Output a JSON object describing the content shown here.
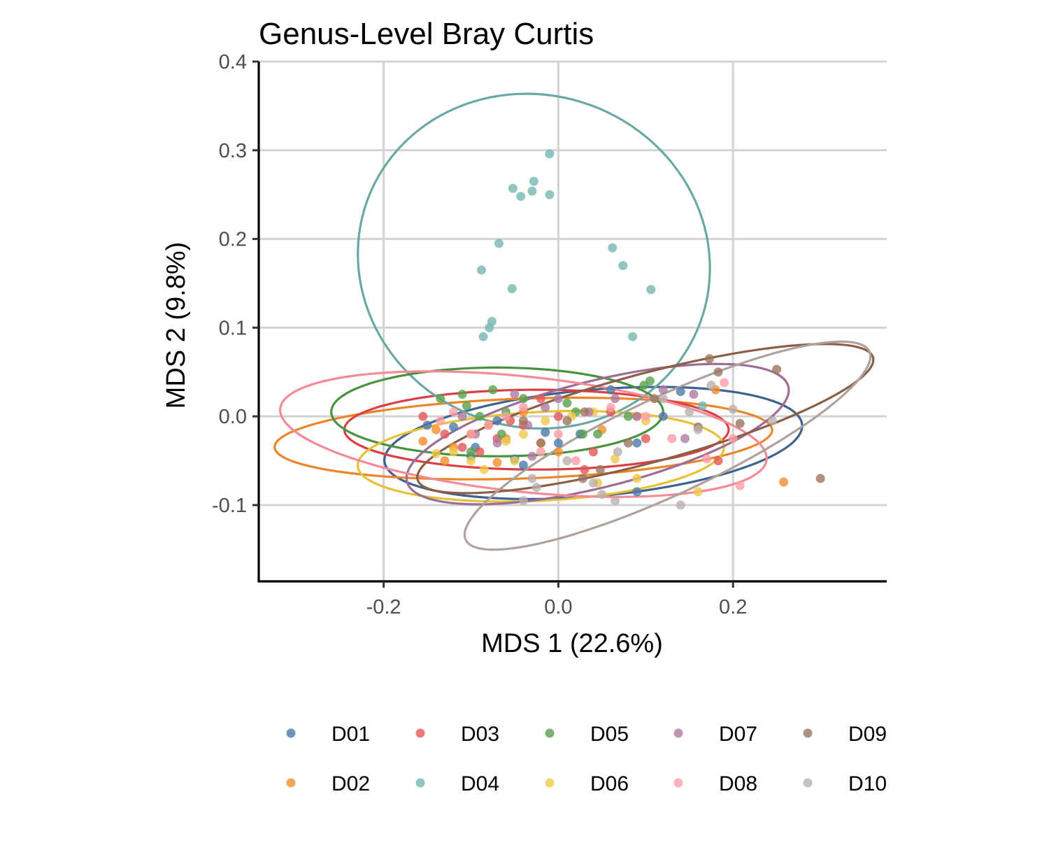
{
  "chart_data": {
    "type": "scatter",
    "title": "Genus-Level Bray Curtis",
    "xlabel": "MDS 1 (22.6%)",
    "ylabel": "MDS 2 (9.8%)",
    "xlim": [
      -0.343,
      0.376
    ],
    "ylim": [
      -0.186,
      0.4
    ],
    "x_ticks": [
      -0.2,
      0.0,
      0.2
    ],
    "x_tick_labels": [
      "-0.2",
      "0.0",
      "0.2"
    ],
    "y_ticks": [
      -0.1,
      0.0,
      0.1,
      0.2,
      0.3,
      0.4
    ],
    "y_tick_labels": [
      "-0.1",
      "0.0",
      "0.1",
      "0.2",
      "0.3",
      "0.4"
    ],
    "grid": true,
    "legend_position": "bottom",
    "series": [
      {
        "name": "D01",
        "color": "#4E79A7",
        "points": [
          [
            -0.15,
            -0.01
          ],
          [
            -0.12,
            -0.012
          ],
          [
            -0.095,
            -0.035
          ],
          [
            -0.07,
            -0.005
          ],
          [
            -0.04,
            -0.055
          ],
          [
            -0.015,
            -0.018
          ],
          [
            0.0,
            -0.03
          ],
          [
            0.025,
            -0.02
          ],
          [
            0.06,
            0.03
          ],
          [
            0.09,
            -0.03
          ],
          [
            0.14,
            0.028
          ],
          [
            -0.05,
            -0.048
          ],
          [
            0.09,
            -0.085
          ],
          [
            0.12,
            0.0
          ],
          [
            -0.1,
            -0.045
          ]
        ],
        "ellipse": {
          "cx": 0.04,
          "cy": -0.03,
          "rx": 0.24,
          "ry": 0.06,
          "angle": 5
        }
      },
      {
        "name": "D02",
        "color": "#F28E2B",
        "points": [
          [
            -0.155,
            -0.028
          ],
          [
            -0.14,
            -0.015
          ],
          [
            -0.13,
            -0.05
          ],
          [
            -0.12,
            -0.035
          ],
          [
            -0.1,
            -0.02
          ],
          [
            -0.08,
            -0.01
          ],
          [
            -0.06,
            -0.025
          ],
          [
            -0.04,
            0.005
          ],
          [
            -0.02,
            -0.03
          ],
          [
            0.0,
            -0.04
          ],
          [
            0.05,
            -0.015
          ],
          [
            0.09,
            0.0
          ],
          [
            0.18,
            0.03
          ],
          [
            0.258,
            -0.074
          ],
          [
            -0.07,
            -0.052
          ]
        ],
        "ellipse": {
          "cx": -0.04,
          "cy": -0.025,
          "rx": 0.285,
          "ry": 0.045,
          "angle": 2
        }
      },
      {
        "name": "D03",
        "color": "#E15759",
        "points": [
          [
            -0.155,
            0.0
          ],
          [
            -0.13,
            -0.02
          ],
          [
            -0.11,
            -0.035
          ],
          [
            -0.09,
            -0.04
          ],
          [
            -0.07,
            -0.025
          ],
          [
            -0.055,
            -0.005
          ],
          [
            -0.04,
            -0.01
          ],
          [
            -0.02,
            0.02
          ],
          [
            0.0,
            0.0
          ],
          [
            0.03,
            -0.06
          ],
          [
            0.06,
            0.005
          ],
          [
            0.1,
            -0.025
          ],
          [
            0.183,
            -0.05
          ],
          [
            0.04,
            -0.04
          ]
        ],
        "ellipse": {
          "cx": -0.025,
          "cy": -0.015,
          "rx": 0.22,
          "ry": 0.045,
          "angle": 0
        }
      },
      {
        "name": "D04",
        "color": "#76B7B2",
        "points": [
          [
            -0.052,
            0.257
          ],
          [
            -0.028,
            0.265
          ],
          [
            -0.01,
            0.296
          ],
          [
            -0.03,
            0.254
          ],
          [
            -0.043,
            0.248
          ],
          [
            -0.01,
            0.25
          ],
          [
            -0.068,
            0.195
          ],
          [
            -0.088,
            0.165
          ],
          [
            -0.053,
            0.144
          ],
          [
            -0.076,
            0.107
          ],
          [
            -0.079,
            0.1
          ],
          [
            -0.086,
            0.09
          ],
          [
            0.062,
            0.19
          ],
          [
            0.074,
            0.17
          ],
          [
            0.106,
            0.143
          ],
          [
            0.085,
            0.09
          ],
          [
            0.165,
            0.012
          ]
        ],
        "ellipse": {
          "cx": -0.028,
          "cy": 0.175,
          "rx": 0.19,
          "ry": 0.2,
          "angle": 70
        }
      },
      {
        "name": "D05",
        "color": "#59A14F",
        "points": [
          [
            -0.135,
            0.02
          ],
          [
            -0.11,
            0.025
          ],
          [
            -0.105,
            0.012
          ],
          [
            -0.09,
            0.0
          ],
          [
            -0.075,
            0.03
          ],
          [
            -0.06,
            0.005
          ],
          [
            -0.04,
            0.02
          ],
          [
            0.01,
            0.015
          ],
          [
            0.02,
            0.005
          ],
          [
            0.028,
            -0.02
          ],
          [
            0.08,
            0.0
          ],
          [
            0.098,
            0.035
          ],
          [
            0.105,
            0.04
          ],
          [
            -0.065,
            -0.02
          ],
          [
            -0.1,
            -0.04
          ],
          [
            0.045,
            -0.02
          ]
        ],
        "ellipse": {
          "cx": -0.07,
          "cy": 0.005,
          "rx": 0.19,
          "ry": 0.05,
          "angle": 0
        }
      },
      {
        "name": "D06",
        "color": "#EDC948",
        "points": [
          [
            -0.14,
            -0.042
          ],
          [
            -0.12,
            -0.04
          ],
          [
            -0.1,
            -0.05
          ],
          [
            -0.085,
            -0.06
          ],
          [
            -0.06,
            -0.028
          ],
          [
            -0.05,
            -0.05
          ],
          [
            -0.04,
            -0.02
          ],
          [
            -0.015,
            -0.005
          ],
          [
            0.015,
            0.0
          ],
          [
            0.04,
            0.005
          ],
          [
            0.065,
            -0.048
          ],
          [
            0.09,
            -0.07
          ],
          [
            0.1,
            -0.005
          ],
          [
            0.16,
            -0.085
          ],
          [
            0.045,
            -0.075
          ]
        ],
        "ellipse": {
          "cx": -0.02,
          "cy": -0.045,
          "rx": 0.21,
          "ry": 0.05,
          "angle": 3
        }
      },
      {
        "name": "D07",
        "color": "#B07AA1",
        "points": [
          [
            -0.11,
            0.0
          ],
          [
            -0.095,
            -0.02
          ],
          [
            -0.07,
            -0.03
          ],
          [
            -0.05,
            0.025
          ],
          [
            -0.035,
            -0.01
          ],
          [
            -0.015,
            0.01
          ],
          [
            0.0,
            0.02
          ],
          [
            0.035,
            0.005
          ],
          [
            0.065,
            0.02
          ],
          [
            0.09,
            0.0
          ],
          [
            0.12,
            0.03
          ],
          [
            0.155,
            0.025
          ],
          [
            0.145,
            -0.025
          ],
          [
            -0.03,
            -0.045
          ]
        ],
        "ellipse": {
          "cx": 0.045,
          "cy": -0.02,
          "rx": 0.225,
          "ry": 0.06,
          "angle": 14
        }
      },
      {
        "name": "D08",
        "color": "#FF9DA7",
        "points": [
          [
            -0.135,
            -0.005
          ],
          [
            -0.12,
            0.005
          ],
          [
            -0.1,
            -0.02
          ],
          [
            -0.08,
            -0.01
          ],
          [
            -0.06,
            0.0
          ],
          [
            -0.04,
            0.01
          ],
          [
            -0.02,
            -0.04
          ],
          [
            0.0,
            -0.02
          ],
          [
            0.02,
            -0.05
          ],
          [
            0.06,
            0.01
          ],
          [
            0.1,
            0.0
          ],
          [
            0.13,
            -0.025
          ],
          [
            0.17,
            -0.048
          ],
          [
            0.19,
            0.038
          ],
          [
            0.2,
            -0.025
          ],
          [
            0.208,
            -0.078
          ]
        ],
        "ellipse": {
          "cx": -0.04,
          "cy": -0.02,
          "rx": 0.28,
          "ry": 0.065,
          "angle": -6
        }
      },
      {
        "name": "D09",
        "color": "#9C755F",
        "points": [
          [
            -0.04,
            -0.005
          ],
          [
            -0.02,
            -0.03
          ],
          [
            0.01,
            -0.005
          ],
          [
            0.03,
            0.005
          ],
          [
            0.048,
            -0.06
          ],
          [
            0.08,
            -0.03
          ],
          [
            0.11,
            0.02
          ],
          [
            0.16,
            -0.012
          ],
          [
            0.173,
            0.065
          ],
          [
            0.183,
            0.05
          ],
          [
            0.208,
            -0.008
          ],
          [
            0.25,
            0.053
          ],
          [
            0.3,
            -0.07
          ],
          [
            0.028,
            -0.07
          ]
        ],
        "ellipse": {
          "cx": 0.0996,
          "cy": -0.0025,
          "rx": 0.27,
          "ry": 0.05,
          "angle": 15
        }
      },
      {
        "name": "D10",
        "color": "#BAB0AC",
        "points": [
          [
            -0.04,
            -0.095
          ],
          [
            -0.025,
            -0.08
          ],
          [
            -0.03,
            -0.07
          ],
          [
            0.01,
            -0.05
          ],
          [
            0.04,
            -0.075
          ],
          [
            0.05,
            -0.088
          ],
          [
            0.065,
            -0.095
          ],
          [
            0.068,
            -0.04
          ],
          [
            0.12,
            0.02
          ],
          [
            0.14,
            -0.1
          ],
          [
            0.15,
            0.005
          ],
          [
            0.175,
            0.035
          ],
          [
            0.2,
            0.008
          ],
          [
            0.245,
            -0.005
          ],
          [
            0.16,
            -0.015
          ]
        ],
        "ellipse": {
          "cx": 0.125,
          "cy": -0.033,
          "rx": 0.255,
          "ry": 0.055,
          "angle": 25
        }
      }
    ],
    "ellipse_colors": {
      "D01": "#3F618F",
      "D02": "#EC842A",
      "D03": "#DC3F43",
      "D04": "#6AA8A4",
      "D05": "#48923F",
      "D06": "#E7C135",
      "D07": "#9C6D95",
      "D08": "#F28A97",
      "D09": "#8B5E46",
      "D10": "#AEA19E"
    }
  }
}
